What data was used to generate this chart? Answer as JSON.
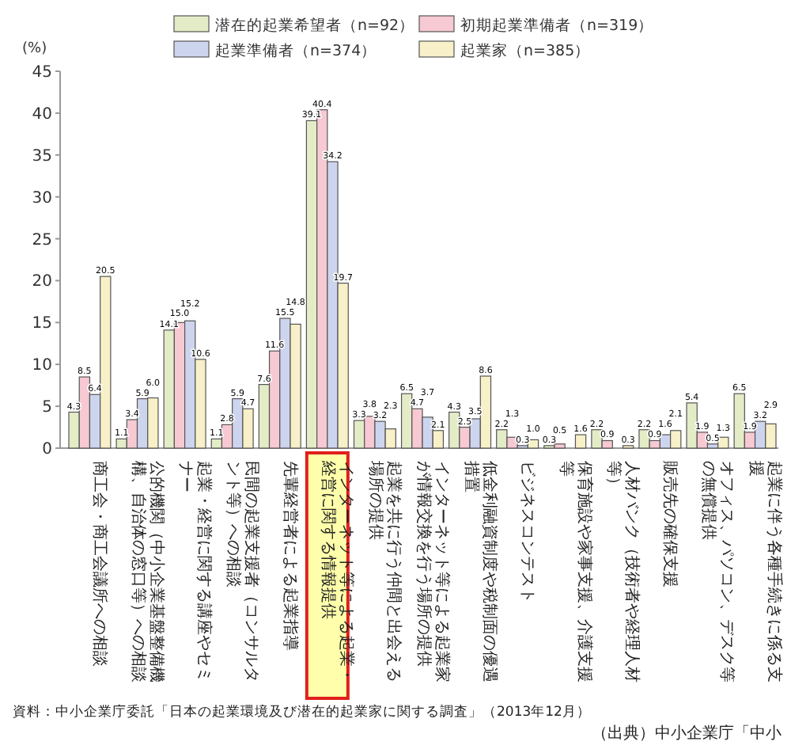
{
  "chart_data": {
    "type": "bar",
    "ylabel": "(%)",
    "legend": "top",
    "categories": [
      "商工会・商工会議所への相談",
      "公的機関（中小企業基盤整備機構、自治体の窓口等）への相談",
      "起業・経営に関する講座やセミナー",
      "民間の起業支援者（コンサルタント等）への相談",
      "先輩経営者による起業指導",
      "インターネット等による起業・経営に関する情報提供",
      "起業を共に行う仲間と出会える場所の提供",
      "インターネット等による起業家が情報交換を行う場所の提供",
      "低金利融資制度や税制面の優遇措置",
      "ビジネスコンテスト",
      "保育施設や家事支援、介護支援等",
      "人材バンク（技術者や経理人材等）",
      "販売先の確保支援",
      "オフィス、パソコン、デスク等の無償提供",
      "起業に伴う各種手続きに係る支援"
    ],
    "series": [
      {
        "name": "潜在的起業希望者（n=92）",
        "color": "#e3ecc6",
        "values": [
          4.3,
          1.1,
          14.1,
          1.1,
          7.6,
          39.1,
          3.3,
          6.5,
          4.3,
          2.2,
          0.3,
          2.2,
          2.2,
          5.4,
          6.5
        ],
        "value_labels": [
          "4.3",
          "1.1",
          "14.1",
          "1.1",
          "7.6",
          "39.1",
          "3.3",
          "6.5",
          "4.3",
          "2.2",
          "0.3",
          "2.2",
          "2.2",
          "5.4",
          "6.5"
        ]
      },
      {
        "name": "初期起業準備者（n=319）",
        "color": "#f7c9d3",
        "values": [
          8.5,
          3.4,
          15.0,
          2.8,
          11.6,
          40.4,
          3.8,
          4.7,
          2.5,
          1.3,
          0.5,
          0.9,
          0.9,
          1.9,
          1.9
        ],
        "value_labels": [
          "8.5",
          "3.4",
          "15.0",
          "2.8",
          "11.6",
          "40.4",
          "3.8",
          "4.7",
          "2.5",
          "1.3",
          "0.5",
          "0.9",
          "0.9",
          "1.9",
          "1.9"
        ]
      },
      {
        "name": "起業準備者（n=374）",
        "color": "#cdd5ee",
        "values": [
          6.4,
          5.9,
          15.2,
          5.9,
          15.5,
          34.2,
          3.2,
          3.7,
          3.5,
          0.3,
          0,
          0,
          1.6,
          0.5,
          3.2
        ],
        "value_labels": [
          "6.4",
          "5.9",
          "15.2",
          "5.9",
          "15.5",
          "34.2",
          "3.2",
          "3.7",
          "3.5",
          "0.3",
          null,
          null,
          "1.6",
          "0.5",
          "3.2"
        ]
      },
      {
        "name": "起業家（n=385）",
        "color": "#f7f0c8",
        "values": [
          20.5,
          6.0,
          10.6,
          4.7,
          14.8,
          19.7,
          2.3,
          2.1,
          8.6,
          1.0,
          1.6,
          0.3,
          2.1,
          1.3,
          2.9
        ],
        "value_labels": [
          "20.5",
          "6.0",
          "10.6",
          "4.7",
          "14.8",
          "19.7",
          "2.3",
          "2.1",
          "8.6",
          "1.0",
          "1.6",
          "0.3",
          "2.1",
          "1.3",
          "2.9"
        ]
      }
    ],
    "ylim": [
      0,
      45
    ],
    "yticks": [
      0,
      5,
      10,
      15,
      20,
      25,
      30,
      35,
      40,
      45
    ],
    "grid": false,
    "annotations": [
      "資料：中小企業庁委託「日本の起業環境及び潜在的起業家に関する調査」（2013年12月）",
      "（出典）中小企業庁「中小"
    ]
  }
}
